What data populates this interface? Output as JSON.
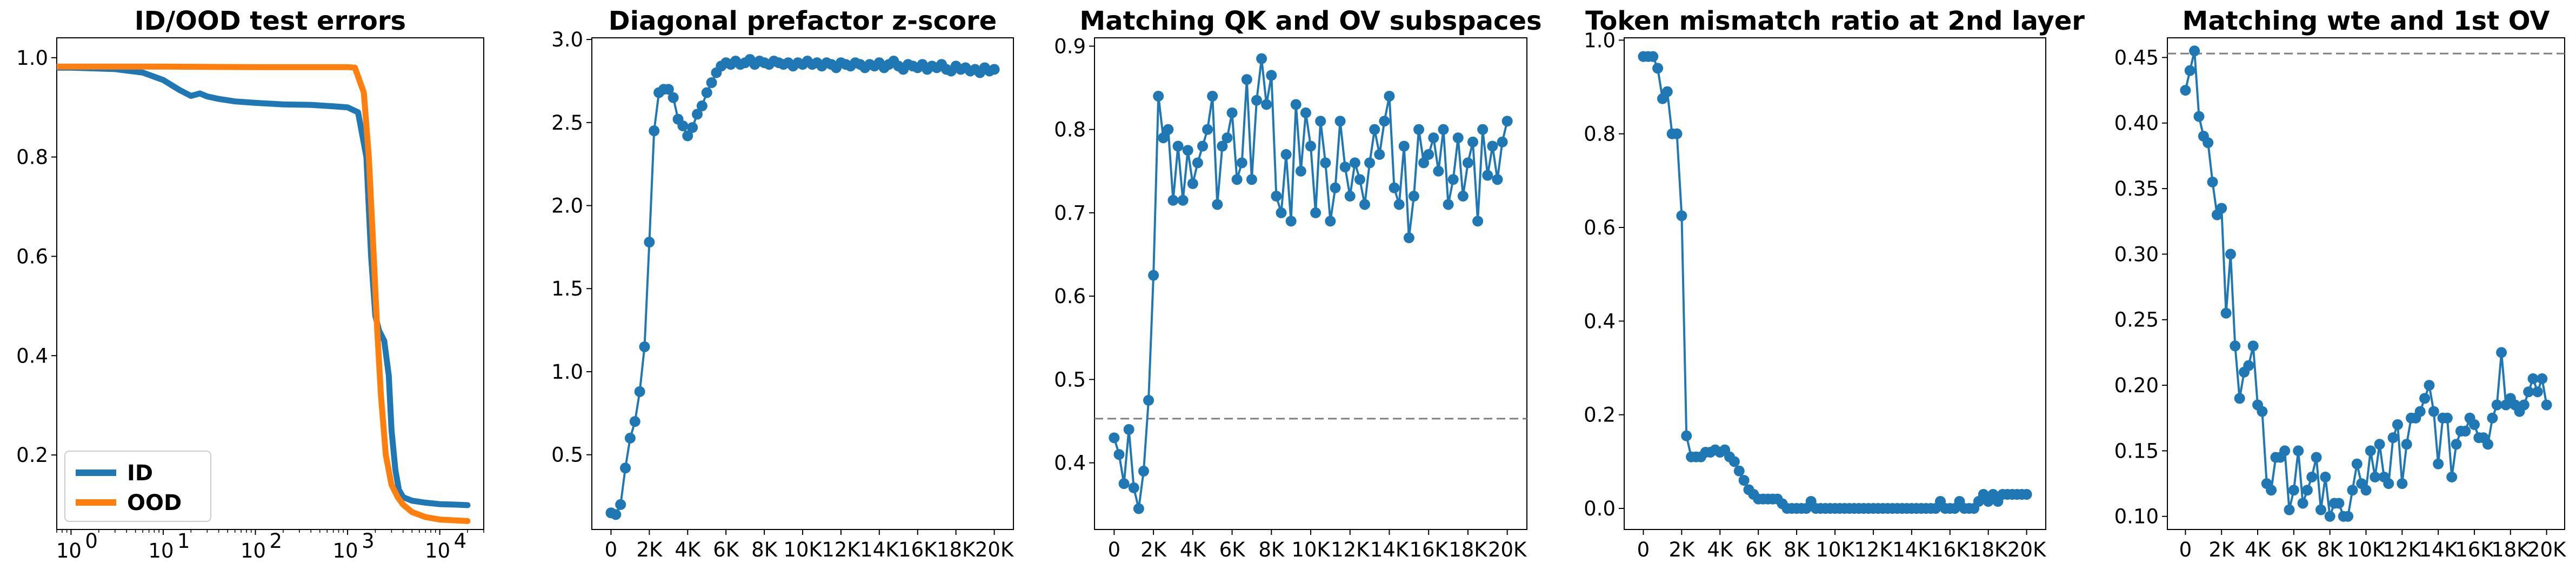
{
  "colors": {
    "blue": "#1f77b4",
    "orange": "#ff7f0e",
    "ref_line": "#7f7f7f"
  },
  "chart_data": [
    {
      "type": "line",
      "title": "ID/OOD test errors",
      "xscale": "log",
      "xlim": [
        0.7,
        30000
      ],
      "ylim": [
        0.05,
        1.04
      ],
      "xticks": [
        1,
        10,
        100,
        1000,
        10000
      ],
      "xtick_labels": [
        "10",
        "10",
        "10",
        "10",
        "10"
      ],
      "xtick_exponents": [
        "0",
        "1",
        "2",
        "3",
        "4"
      ],
      "yticks": [
        0.2,
        0.4,
        0.6,
        0.8,
        1.0
      ],
      "ytick_labels": [
        "0.2",
        "0.4",
        "0.6",
        "0.8",
        "1.0"
      ],
      "legend": "lower-left",
      "series": [
        {
          "name": "ID",
          "color": "#1f77b4",
          "x": [
            0.7,
            1,
            3,
            6,
            10,
            15,
            20,
            25,
            30,
            40,
            60,
            100,
            200,
            400,
            700,
            1000,
            1300,
            1600,
            1800,
            2000,
            2200,
            2500,
            2800,
            3000,
            3300,
            3600,
            4000,
            5000,
            7000,
            10000,
            15000,
            20000
          ],
          "y": [
            0.98,
            0.98,
            0.977,
            0.97,
            0.955,
            0.935,
            0.923,
            0.928,
            0.922,
            0.917,
            0.912,
            0.909,
            0.906,
            0.905,
            0.902,
            0.9,
            0.89,
            0.8,
            0.6,
            0.48,
            0.45,
            0.43,
            0.36,
            0.25,
            0.17,
            0.13,
            0.115,
            0.108,
            0.104,
            0.101,
            0.1,
            0.099
          ]
        },
        {
          "name": "OOD",
          "color": "#ff7f0e",
          "x": [
            0.7,
            10,
            100,
            1000,
            1200,
            1500,
            1700,
            1900,
            2100,
            2300,
            2600,
            3000,
            3500,
            4000,
            5000,
            7000,
            10000,
            20000
          ],
          "y": [
            0.982,
            0.982,
            0.981,
            0.981,
            0.98,
            0.93,
            0.8,
            0.62,
            0.45,
            0.32,
            0.2,
            0.14,
            0.115,
            0.1,
            0.085,
            0.075,
            0.07,
            0.067
          ]
        }
      ]
    },
    {
      "type": "line",
      "title": "Diagonal prefactor z-score",
      "xlim": [
        -1000,
        21000
      ],
      "ylim": [
        0.05,
        3.01
      ],
      "xticks": [
        0,
        2000,
        4000,
        6000,
        8000,
        10000,
        12000,
        14000,
        16000,
        18000,
        20000
      ],
      "xtick_labels": [
        "0",
        "2K",
        "4K",
        "6K",
        "8K",
        "10K",
        "12K",
        "14K",
        "16K",
        "18K",
        "20K"
      ],
      "yticks": [
        0.5,
        1.0,
        1.5,
        2.0,
        2.5,
        3.0
      ],
      "ytick_labels": [
        "0.5",
        "1.0",
        "1.5",
        "2.0",
        "2.5",
        "3.0"
      ],
      "series": [
        {
          "color": "#1f77b4",
          "markers": true,
          "x": [
            0,
            250,
            500,
            750,
            1000,
            1250,
            1500,
            1750,
            2000,
            2250,
            2500,
            2750,
            3000,
            3250,
            3500,
            3750,
            4000,
            4250,
            4500,
            4750,
            5000,
            5250,
            5500,
            5750,
            6000,
            6250,
            6500,
            6750,
            7000,
            7250,
            7500,
            7750,
            8000,
            8250,
            8500,
            8750,
            9000,
            9250,
            9500,
            9750,
            10000,
            10250,
            10500,
            10750,
            11000,
            11250,
            11500,
            11750,
            12000,
            12250,
            12500,
            12750,
            13000,
            13250,
            13500,
            13750,
            14000,
            14250,
            14500,
            14750,
            15000,
            15250,
            15500,
            15750,
            16000,
            16250,
            16500,
            16750,
            17000,
            17250,
            17500,
            17750,
            18000,
            18250,
            18500,
            18750,
            19000,
            19250,
            19500,
            19750,
            20000
          ],
          "y": [
            0.15,
            0.14,
            0.2,
            0.42,
            0.6,
            0.7,
            0.88,
            1.15,
            1.78,
            2.45,
            2.68,
            2.7,
            2.7,
            2.65,
            2.52,
            2.48,
            2.42,
            2.47,
            2.55,
            2.6,
            2.68,
            2.74,
            2.8,
            2.84,
            2.86,
            2.85,
            2.87,
            2.85,
            2.86,
            2.88,
            2.85,
            2.87,
            2.86,
            2.85,
            2.87,
            2.86,
            2.85,
            2.86,
            2.84,
            2.86,
            2.85,
            2.87,
            2.85,
            2.86,
            2.84,
            2.86,
            2.85,
            2.83,
            2.86,
            2.85,
            2.84,
            2.86,
            2.85,
            2.83,
            2.85,
            2.84,
            2.86,
            2.83,
            2.85,
            2.87,
            2.84,
            2.82,
            2.85,
            2.84,
            2.83,
            2.85,
            2.82,
            2.84,
            2.83,
            2.85,
            2.82,
            2.81,
            2.84,
            2.82,
            2.83,
            2.81,
            2.82,
            2.8,
            2.83,
            2.81,
            2.82
          ]
        }
      ]
    },
    {
      "type": "line",
      "title": "Matching QK and OV subspaces",
      "xlim": [
        -1000,
        21000
      ],
      "ylim": [
        0.32,
        0.91
      ],
      "xticks": [
        0,
        2000,
        4000,
        6000,
        8000,
        10000,
        12000,
        14000,
        16000,
        18000,
        20000
      ],
      "xtick_labels": [
        "0",
        "2K",
        "4K",
        "6K",
        "8K",
        "10K",
        "12K",
        "14K",
        "16K",
        "18K",
        "20K"
      ],
      "yticks": [
        0.4,
        0.5,
        0.6,
        0.7,
        0.8,
        0.9
      ],
      "ytick_labels": [
        "0.4",
        "0.5",
        "0.6",
        "0.7",
        "0.8",
        "0.9"
      ],
      "reference_line": {
        "y": 0.453,
        "style": "dashed"
      },
      "series": [
        {
          "color": "#1f77b4",
          "markers": true,
          "x": [
            0,
            250,
            500,
            750,
            1000,
            1250,
            1500,
            1750,
            2000,
            2250,
            2500,
            2750,
            3000,
            3250,
            3500,
            3750,
            4000,
            4250,
            4500,
            4750,
            5000,
            5250,
            5500,
            5750,
            6000,
            6250,
            6500,
            6750,
            7000,
            7250,
            7500,
            7750,
            8000,
            8250,
            8500,
            8750,
            9000,
            9250,
            9500,
            9750,
            10000,
            10250,
            10500,
            10750,
            11000,
            11250,
            11500,
            11750,
            12000,
            12250,
            12500,
            12750,
            13000,
            13250,
            13500,
            13750,
            14000,
            14250,
            14500,
            14750,
            15000,
            15250,
            15500,
            15750,
            16000,
            16250,
            16500,
            16750,
            17000,
            17250,
            17500,
            17750,
            18000,
            18250,
            18500,
            18750,
            19000,
            19250,
            19500,
            19750,
            20000
          ],
          "y": [
            0.43,
            0.41,
            0.375,
            0.44,
            0.37,
            0.345,
            0.39,
            0.475,
            0.625,
            0.84,
            0.79,
            0.8,
            0.715,
            0.78,
            0.715,
            0.775,
            0.735,
            0.76,
            0.78,
            0.8,
            0.84,
            0.71,
            0.78,
            0.79,
            0.82,
            0.74,
            0.76,
            0.86,
            0.74,
            0.835,
            0.885,
            0.83,
            0.865,
            0.72,
            0.7,
            0.77,
            0.69,
            0.83,
            0.75,
            0.82,
            0.78,
            0.7,
            0.81,
            0.76,
            0.69,
            0.73,
            0.81,
            0.755,
            0.72,
            0.76,
            0.74,
            0.71,
            0.76,
            0.8,
            0.77,
            0.81,
            0.84,
            0.73,
            0.71,
            0.78,
            0.67,
            0.72,
            0.8,
            0.76,
            0.77,
            0.79,
            0.75,
            0.8,
            0.71,
            0.74,
            0.79,
            0.72,
            0.76,
            0.785,
            0.69,
            0.8,
            0.745,
            0.78,
            0.74,
            0.785,
            0.81
          ]
        }
      ]
    },
    {
      "type": "line",
      "title": "Token mismatch ratio at 2nd layer",
      "xlim": [
        -1000,
        21000
      ],
      "ylim": [
        -0.045,
        1.005
      ],
      "xticks": [
        0,
        2000,
        4000,
        6000,
        8000,
        10000,
        12000,
        14000,
        16000,
        18000,
        20000
      ],
      "xtick_labels": [
        "0",
        "2K",
        "4K",
        "6K",
        "8K",
        "10K",
        "12K",
        "14K",
        "16K",
        "18K",
        "20K"
      ],
      "yticks": [
        0.0,
        0.2,
        0.4,
        0.6,
        0.8,
        1.0
      ],
      "ytick_labels": [
        "0.0",
        "0.2",
        "0.4",
        "0.6",
        "0.8",
        "1.0"
      ],
      "series": [
        {
          "color": "#1f77b4",
          "markers": true,
          "x": [
            0,
            250,
            500,
            750,
            1000,
            1250,
            1500,
            1750,
            2000,
            2250,
            2500,
            2750,
            3000,
            3250,
            3500,
            3750,
            4000,
            4250,
            4500,
            4750,
            5000,
            5250,
            5500,
            5750,
            6000,
            6250,
            6500,
            6750,
            7000,
            7250,
            7500,
            7750,
            8000,
            8250,
            8500,
            8750,
            9000,
            9250,
            9500,
            9750,
            10000,
            10250,
            10500,
            10750,
            11000,
            11250,
            11500,
            11750,
            12000,
            12250,
            12500,
            12750,
            13000,
            13250,
            13500,
            13750,
            14000,
            14250,
            14500,
            14750,
            15000,
            15250,
            15500,
            15750,
            16000,
            16250,
            16500,
            16750,
            17000,
            17250,
            17500,
            17750,
            18000,
            18250,
            18500,
            18750,
            19000,
            19250,
            19500,
            19750,
            20000
          ],
          "y": [
            0.965,
            0.965,
            0.965,
            0.94,
            0.875,
            0.89,
            0.8,
            0.8,
            0.625,
            0.155,
            0.11,
            0.11,
            0.11,
            0.12,
            0.12,
            0.125,
            0.12,
            0.125,
            0.11,
            0.1,
            0.08,
            0.06,
            0.04,
            0.03,
            0.02,
            0.02,
            0.02,
            0.02,
            0.02,
            0.01,
            0.0,
            0.0,
            0.0,
            0.0,
            0.0,
            0.015,
            0.0,
            0.0,
            0.0,
            0.0,
            0.0,
            0.0,
            0.0,
            0.0,
            0.0,
            0.0,
            0.0,
            0.0,
            0.0,
            0.0,
            0.0,
            0.0,
            0.0,
            0.0,
            0.0,
            0.0,
            0.0,
            0.0,
            0.0,
            0.0,
            0.0,
            0.0,
            0.015,
            0.0,
            0.0,
            0.0,
            0.015,
            0.0,
            0.0,
            0.0,
            0.015,
            0.03,
            0.015,
            0.03,
            0.015,
            0.03,
            0.03,
            0.03,
            0.03,
            0.03,
            0.03
          ]
        }
      ]
    },
    {
      "type": "line",
      "title": "Matching wte and 1st OV",
      "xlim": [
        -1000,
        21000
      ],
      "ylim": [
        0.09,
        0.465
      ],
      "xticks": [
        0,
        2000,
        4000,
        6000,
        8000,
        10000,
        12000,
        14000,
        16000,
        18000,
        20000
      ],
      "xtick_labels": [
        "0",
        "2K",
        "4K",
        "6K",
        "8K",
        "10K",
        "12K",
        "14K",
        "16K",
        "18K",
        "20K"
      ],
      "yticks": [
        0.1,
        0.15,
        0.2,
        0.25,
        0.3,
        0.35,
        0.4,
        0.45
      ],
      "ytick_labels": [
        "0.10",
        "0.15",
        "0.20",
        "0.25",
        "0.30",
        "0.35",
        "0.40",
        "0.45"
      ],
      "reference_line": {
        "y": 0.453,
        "style": "dashed"
      },
      "series": [
        {
          "color": "#1f77b4",
          "markers": true,
          "x": [
            0,
            250,
            500,
            750,
            1000,
            1250,
            1500,
            1750,
            2000,
            2250,
            2500,
            2750,
            3000,
            3250,
            3500,
            3750,
            4000,
            4250,
            4500,
            4750,
            5000,
            5250,
            5500,
            5750,
            6000,
            6250,
            6500,
            6750,
            7000,
            7250,
            7500,
            7750,
            8000,
            8250,
            8500,
            8750,
            9000,
            9250,
            9500,
            9750,
            10000,
            10250,
            10500,
            10750,
            11000,
            11250,
            11500,
            11750,
            12000,
            12250,
            12500,
            12750,
            13000,
            13250,
            13500,
            13750,
            14000,
            14250,
            14500,
            14750,
            15000,
            15250,
            15500,
            15750,
            16000,
            16250,
            16500,
            16750,
            17000,
            17250,
            17500,
            17750,
            18000,
            18250,
            18500,
            18750,
            19000,
            19250,
            19500,
            19750,
            20000
          ],
          "y": [
            0.425,
            0.44,
            0.455,
            0.405,
            0.39,
            0.385,
            0.355,
            0.33,
            0.335,
            0.255,
            0.3,
            0.23,
            0.19,
            0.21,
            0.215,
            0.23,
            0.185,
            0.18,
            0.125,
            0.12,
            0.145,
            0.145,
            0.15,
            0.105,
            0.12,
            0.15,
            0.11,
            0.12,
            0.13,
            0.145,
            0.105,
            0.13,
            0.1,
            0.11,
            0.11,
            0.1,
            0.1,
            0.12,
            0.14,
            0.125,
            0.12,
            0.15,
            0.13,
            0.155,
            0.13,
            0.125,
            0.16,
            0.17,
            0.125,
            0.155,
            0.175,
            0.175,
            0.18,
            0.19,
            0.2,
            0.18,
            0.14,
            0.175,
            0.175,
            0.13,
            0.155,
            0.165,
            0.165,
            0.175,
            0.17,
            0.16,
            0.16,
            0.155,
            0.175,
            0.185,
            0.225,
            0.185,
            0.19,
            0.185,
            0.18,
            0.185,
            0.195,
            0.205,
            0.195,
            0.205,
            0.185
          ]
        }
      ]
    }
  ]
}
